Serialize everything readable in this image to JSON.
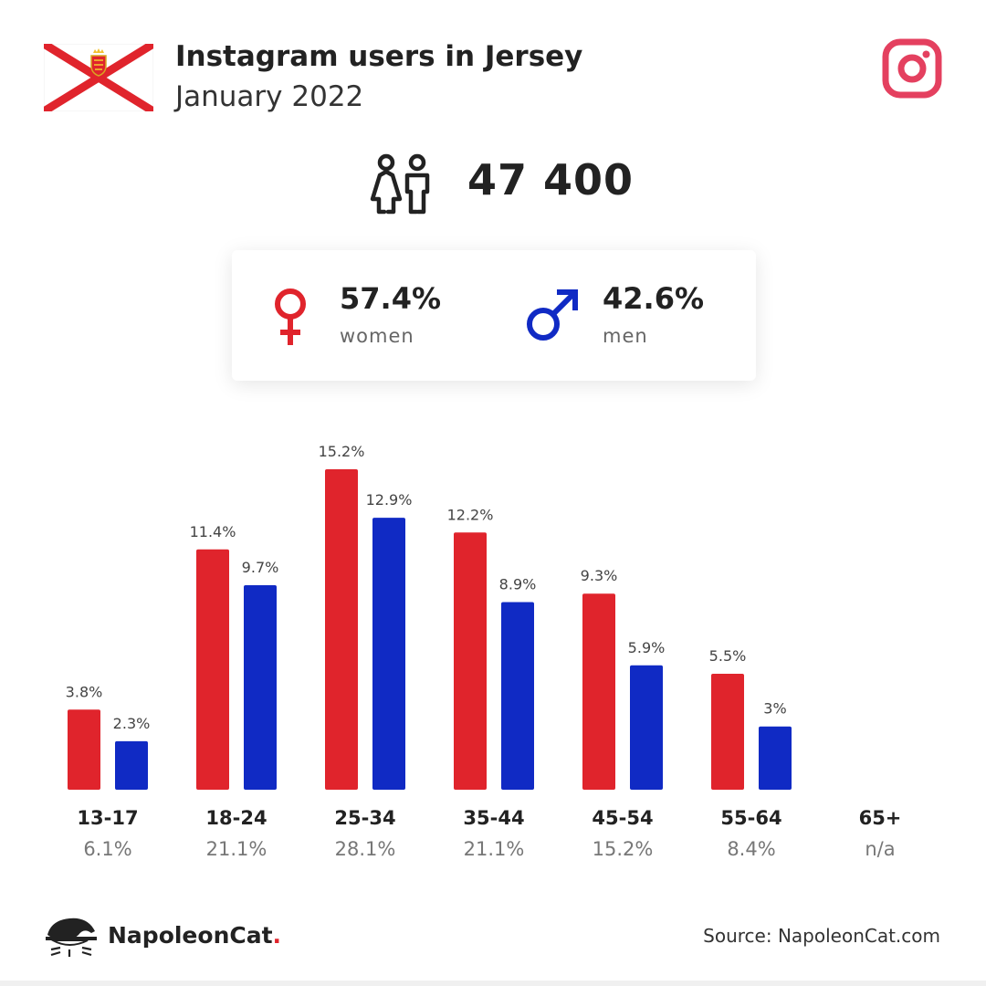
{
  "header": {
    "title": "Instagram users in Jersey",
    "subtitle": "January 2022"
  },
  "total_users": "47 400",
  "gender": {
    "women": {
      "percent": "57.4%",
      "label": "women"
    },
    "men": {
      "percent": "42.6%",
      "label": "men"
    }
  },
  "colors": {
    "women": "#e0242c",
    "men": "#102ac4",
    "instagram": "#e4405f",
    "flag_red": "#e0242c"
  },
  "icons": [
    "jersey-flag",
    "instagram-icon",
    "people-icon",
    "female-symbol-icon",
    "male-symbol-icon",
    "napoleoncat-logo-icon"
  ],
  "chart_data": {
    "type": "bar",
    "categories": [
      "13-17",
      "18-24",
      "25-34",
      "35-44",
      "45-54",
      "55-64",
      "65+"
    ],
    "category_shares": [
      "6.1%",
      "21.1%",
      "28.1%",
      "21.1%",
      "15.2%",
      "8.4%",
      "n/a"
    ],
    "series": [
      {
        "key": "women",
        "values": [
          3.8,
          11.4,
          15.2,
          12.2,
          9.3,
          5.5,
          null
        ],
        "labels": [
          "3.8%",
          "11.4%",
          "15.2%",
          "12.2%",
          "9.3%",
          "5.5%",
          ""
        ]
      },
      {
        "key": "men",
        "values": [
          2.3,
          9.7,
          12.9,
          8.9,
          5.9,
          3.0,
          null
        ],
        "labels": [
          "2.3%",
          "9.7%",
          "12.9%",
          "8.9%",
          "5.9%",
          "3%",
          ""
        ]
      }
    ],
    "ylim": [
      0,
      15.2
    ],
    "grid": false,
    "legend": "none"
  },
  "footer": {
    "brand": "NapoleonCat",
    "brand_dot": ".",
    "source": "Source: NapoleonCat.com"
  }
}
